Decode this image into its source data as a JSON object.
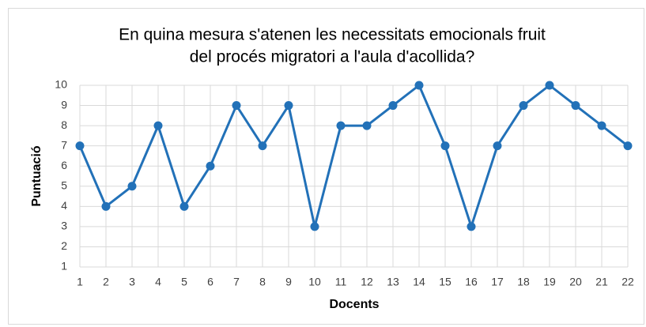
{
  "chart_data": {
    "type": "line",
    "title": [
      "En quina mesura s'atenen les necessitats emocionals fruit",
      "del procés migratori a l'aula d'acollida?"
    ],
    "x_label": "Docents",
    "y_label": "Puntuació",
    "x": [
      1,
      2,
      3,
      4,
      5,
      6,
      7,
      8,
      9,
      10,
      11,
      12,
      13,
      14,
      15,
      16,
      17,
      18,
      19,
      20,
      21,
      22
    ],
    "series": [
      {
        "color": "#2271b8",
        "values": [
          7,
          4,
          5,
          8,
          4,
          6,
          9,
          7,
          9,
          3,
          8,
          8,
          9,
          10,
          7,
          3,
          7,
          9,
          10,
          9,
          8,
          7
        ]
      }
    ],
    "xlim": [
      1,
      22
    ],
    "xticks": [
      1,
      2,
      3,
      4,
      5,
      6,
      7,
      8,
      9,
      10,
      11,
      12,
      13,
      14,
      15,
      16,
      17,
      18,
      19,
      20,
      21,
      22
    ],
    "ylim": [
      1,
      10
    ],
    "yticks": [
      1,
      2,
      3,
      4,
      5,
      6,
      7,
      8,
      9,
      10
    ],
    "grid": true
  }
}
